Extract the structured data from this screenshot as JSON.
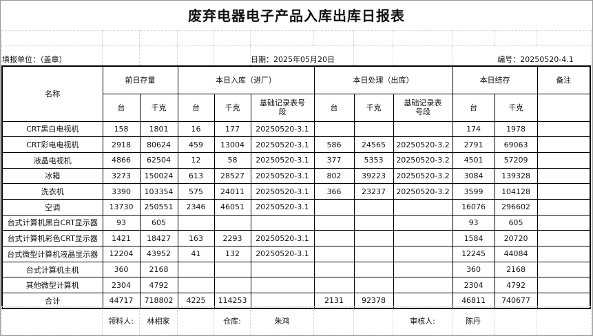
{
  "title": "废弃电器电子产品入库出库日报表",
  "info": {
    "unit": "填报单位：（盖章）",
    "date": "日期：2025年05月20日",
    "number": "编号：20250520-4.1"
  },
  "headers": {
    "name": "名称",
    "prev": "前日存量",
    "in": "本日入库（进厂）",
    "out": "本日处理（出库）",
    "end": "本日结存",
    "remark": "备注",
    "unit_count": "台",
    "unit_kg": "千克",
    "record": "基础记录表号段"
  },
  "rows": [
    [
      "CRT黑白电视机",
      "158",
      "1801",
      "16",
      "177",
      "20250520-3.1",
      "",
      "",
      "",
      "174",
      "1978",
      ""
    ],
    [
      "CRT彩电电视机",
      "2918",
      "80624",
      "459",
      "13004",
      "20250520-3.1",
      "586",
      "24565",
      "20250520-3.2",
      "2791",
      "69063",
      ""
    ],
    [
      "液晶电视机",
      "4866",
      "62504",
      "12",
      "58",
      "20250520-3.1",
      "377",
      "5353",
      "20250520-3.2",
      "4501",
      "57209",
      ""
    ],
    [
      "冰箱",
      "3273",
      "150024",
      "613",
      "28527",
      "20250520-3.1",
      "802",
      "39223",
      "20250520-3.2",
      "3084",
      "139328",
      ""
    ],
    [
      "洗衣机",
      "3390",
      "103354",
      "575",
      "24011",
      "20250520-3.1",
      "366",
      "23237",
      "20250520-3.2",
      "3599",
      "104128",
      ""
    ],
    [
      "空调",
      "13730",
      "250551",
      "2346",
      "46051",
      "20250520-3.1",
      "",
      "",
      "",
      "16076",
      "296602",
      ""
    ],
    [
      "台式计算机黑白CRT显示器",
      "93",
      "605",
      "",
      "",
      "",
      "",
      "",
      "",
      "93",
      "605",
      ""
    ],
    [
      "台式计算机彩色CRT显示器",
      "1421",
      "18427",
      "163",
      "2293",
      "20250520-3.1",
      "",
      "",
      "",
      "1584",
      "20720",
      ""
    ],
    [
      "台式微型计算机液晶显示器",
      "12204",
      "43952",
      "41",
      "132",
      "20250520-3.1",
      "",
      "",
      "",
      "12245",
      "44084",
      ""
    ],
    [
      "台式计算机主机",
      "360",
      "2168",
      "",
      "",
      "",
      "",
      "",
      "",
      "360",
      "2168",
      ""
    ],
    [
      "其他微型计算机",
      "2304",
      "4792",
      "",
      "",
      "",
      "",
      "",
      "",
      "2304",
      "4792",
      ""
    ],
    [
      "合计",
      "44717",
      "718802",
      "4225",
      "114253",
      "",
      "2131",
      "92378",
      "",
      "46811",
      "740677",
      ""
    ]
  ],
  "footer": {
    "receiver_label": "领料人:",
    "receiver": "林相家",
    "warehouse_label": "仓库:",
    "warehouse": "朱鸿",
    "auditor_label": "审核人:",
    "auditor": "陈丹"
  }
}
